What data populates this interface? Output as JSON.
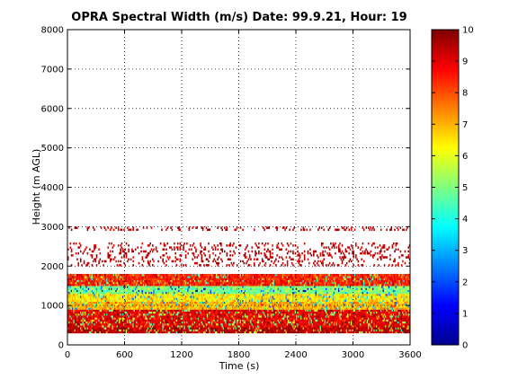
{
  "chart_data": {
    "type": "heatmap",
    "title": "OPRA Spectral Width (m/s)  Date: 99.9.21, Hour: 19",
    "xlabel": "Time (s)",
    "ylabel": "Height (m AGL)",
    "xlim": [
      0,
      3600
    ],
    "ylim": [
      0,
      8000
    ],
    "x_ticks": [
      0,
      600,
      1200,
      1800,
      2400,
      3000,
      3600
    ],
    "y_ticks": [
      0,
      1000,
      2000,
      3000,
      4000,
      5000,
      6000,
      7000,
      8000
    ],
    "grid": true,
    "grid_style": "dotted",
    "colormap": "jet",
    "colorbar": {
      "min": 0,
      "max": 10,
      "ticks": [
        0,
        1,
        2,
        3,
        4,
        5,
        6,
        7,
        8,
        9,
        10
      ]
    },
    "layers": [
      {
        "height_range": [
          300,
          450
        ],
        "typical_value": 9.5,
        "note": "near-saturated band"
      },
      {
        "height_range": [
          450,
          900
        ],
        "typical_value": 9.0,
        "note": "dense dark red with scattered yellow/cyan"
      },
      {
        "height_range": [
          900,
          1100
        ],
        "typical_value": 7.0,
        "note": "yellow/orange band"
      },
      {
        "height_range": [
          1100,
          1300
        ],
        "typical_value": 6.5,
        "note": "yellow with cyan patches"
      },
      {
        "height_range": [
          1300,
          1500
        ],
        "typical_value": 5.0,
        "note": "cyan/green band"
      },
      {
        "height_range": [
          1500,
          1800
        ],
        "typical_value": 8.5,
        "note": "mixed red/orange"
      },
      {
        "height_range": [
          2000,
          2600
        ],
        "typical_value": 9.3,
        "note": "sparse dark red echoes"
      },
      {
        "height_range": [
          2900,
          3000
        ],
        "typical_value": 9.5,
        "note": "isolated points"
      }
    ]
  }
}
